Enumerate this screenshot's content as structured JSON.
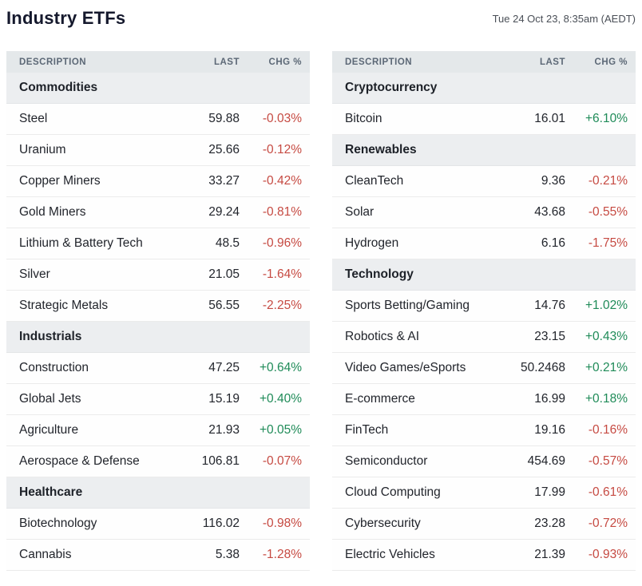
{
  "header": {
    "title": "Industry ETFs",
    "timestamp": "Tue 24 Oct 23, 8:35am (AEDT)"
  },
  "columns": [
    "DESCRIPTION",
    "LAST",
    "CHG %"
  ],
  "colors": {
    "positive": "#1f8b58",
    "negative": "#c64a42",
    "section_bg": "#eceef0",
    "column_header_bg": "#e4e8ea",
    "title_color": "#15192d"
  },
  "tables": [
    {
      "sections": [
        {
          "name": "Commodities",
          "rows": [
            {
              "description": "Steel",
              "last": "59.88",
              "chg": "-0.03%"
            },
            {
              "description": "Uranium",
              "last": "25.66",
              "chg": "-0.12%"
            },
            {
              "description": "Copper Miners",
              "last": "33.27",
              "chg": "-0.42%"
            },
            {
              "description": "Gold Miners",
              "last": "29.24",
              "chg": "-0.81%"
            },
            {
              "description": "Lithium & Battery Tech",
              "last": "48.5",
              "chg": "-0.96%"
            },
            {
              "description": "Silver",
              "last": "21.05",
              "chg": "-1.64%"
            },
            {
              "description": "Strategic Metals",
              "last": "56.55",
              "chg": "-2.25%"
            }
          ]
        },
        {
          "name": "Industrials",
          "rows": [
            {
              "description": "Construction",
              "last": "47.25",
              "chg": "+0.64%"
            },
            {
              "description": "Global Jets",
              "last": "15.19",
              "chg": "+0.40%"
            },
            {
              "description": "Agriculture",
              "last": "21.93",
              "chg": "+0.05%"
            },
            {
              "description": "Aerospace & Defense",
              "last": "106.81",
              "chg": "-0.07%"
            }
          ]
        },
        {
          "name": "Healthcare",
          "rows": [
            {
              "description": "Biotechnology",
              "last": "116.02",
              "chg": "-0.98%"
            },
            {
              "description": "Cannabis",
              "last": "5.38",
              "chg": "-1.28%"
            }
          ]
        }
      ]
    },
    {
      "sections": [
        {
          "name": "Cryptocurrency",
          "rows": [
            {
              "description": "Bitcoin",
              "last": "16.01",
              "chg": "+6.10%"
            }
          ]
        },
        {
          "name": "Renewables",
          "rows": [
            {
              "description": "CleanTech",
              "last": "9.36",
              "chg": "-0.21%"
            },
            {
              "description": "Solar",
              "last": "43.68",
              "chg": "-0.55%"
            },
            {
              "description": "Hydrogen",
              "last": "6.16",
              "chg": "-1.75%"
            }
          ]
        },
        {
          "name": "Technology",
          "rows": [
            {
              "description": "Sports Betting/Gaming",
              "last": "14.76",
              "chg": "+1.02%"
            },
            {
              "description": "Robotics & AI",
              "last": "23.15",
              "chg": "+0.43%"
            },
            {
              "description": "Video Games/eSports",
              "last": "50.2468",
              "chg": "+0.21%"
            },
            {
              "description": "E-commerce",
              "last": "16.99",
              "chg": "+0.18%"
            },
            {
              "description": "FinTech",
              "last": "19.16",
              "chg": "-0.16%"
            },
            {
              "description": "Semiconductor",
              "last": "454.69",
              "chg": "-0.57%"
            },
            {
              "description": "Cloud Computing",
              "last": "17.99",
              "chg": "-0.61%"
            },
            {
              "description": "Cybersecurity",
              "last": "23.28",
              "chg": "-0.72%"
            },
            {
              "description": "Electric Vehicles",
              "last": "21.39",
              "chg": "-0.93%"
            }
          ]
        }
      ]
    }
  ]
}
